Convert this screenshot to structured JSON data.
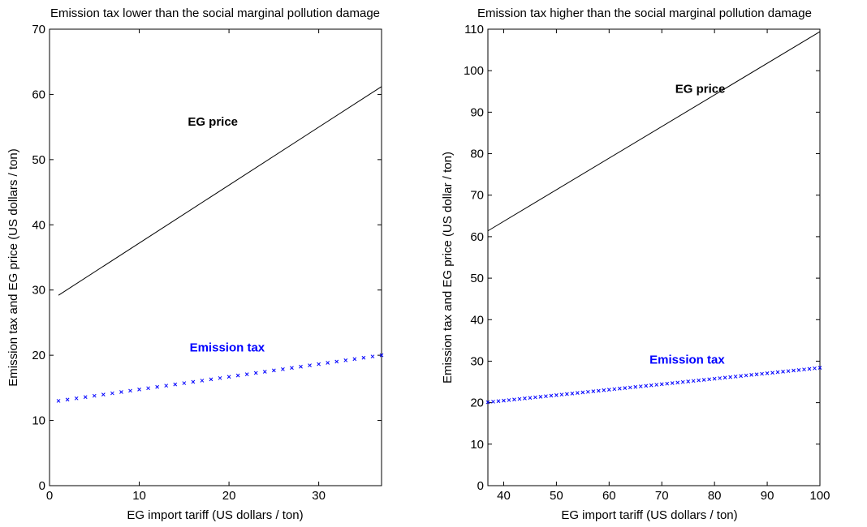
{
  "chart_data": [
    {
      "type": "line",
      "title": "Emission tax lower than the social marginal pollution damage",
      "xlabel": "EG import tariff (US dollars / ton)",
      "ylabel": "Emission tax and EG price (US dollars / ton)",
      "xlim": [
        0,
        37
      ],
      "ylim": [
        0,
        70
      ],
      "xticks": [
        0,
        10,
        20,
        30
      ],
      "yticks": [
        0,
        10,
        20,
        30,
        40,
        50,
        60,
        70
      ],
      "grid": false,
      "series": [
        {
          "name": "EG price",
          "style": "solid-line",
          "color": "#000000",
          "x": [
            1,
            37
          ],
          "y": [
            29.2,
            61.2
          ]
        },
        {
          "name": "Emission tax",
          "style": "x-markers",
          "color": "#0000ff",
          "x_start": 1,
          "x_end": 37,
          "x_step": 1,
          "y_start": 13.0,
          "y_end": 20.0
        }
      ],
      "annotations": [
        {
          "text": "EG price",
          "x": 18.2,
          "y": 55.2,
          "color": "#000000"
        },
        {
          "text": "Emission tax",
          "x": 19.8,
          "y": 20.6,
          "color": "#0000ff"
        }
      ]
    },
    {
      "type": "line",
      "title": "Emission tax higher than the social marginal pollution damage",
      "xlabel": "EG import tariff (US dollars / ton)",
      "ylabel": "Emission tax and EG price (US dollar / ton)",
      "xlim": [
        37,
        100
      ],
      "ylim": [
        0,
        110
      ],
      "xticks": [
        40,
        50,
        60,
        70,
        80,
        90,
        100
      ],
      "yticks": [
        0,
        10,
        20,
        30,
        40,
        50,
        60,
        70,
        80,
        90,
        100,
        110
      ],
      "grid": false,
      "series": [
        {
          "name": "EG price",
          "style": "solid-line",
          "color": "#000000",
          "x": [
            37,
            100
          ],
          "y": [
            61.4,
            109.4
          ]
        },
        {
          "name": "Emission tax",
          "style": "x-markers",
          "color": "#0000ff",
          "x_start": 37,
          "x_end": 100,
          "x_step": 1,
          "y_start": 20.1,
          "y_end": 28.4
        }
      ],
      "annotations": [
        {
          "text": "EG price",
          "x": 77.3,
          "y": 94.7,
          "color": "#000000"
        },
        {
          "text": "Emission tax",
          "x": 74.8,
          "y": 29.4,
          "color": "#0000ff"
        }
      ]
    }
  ]
}
